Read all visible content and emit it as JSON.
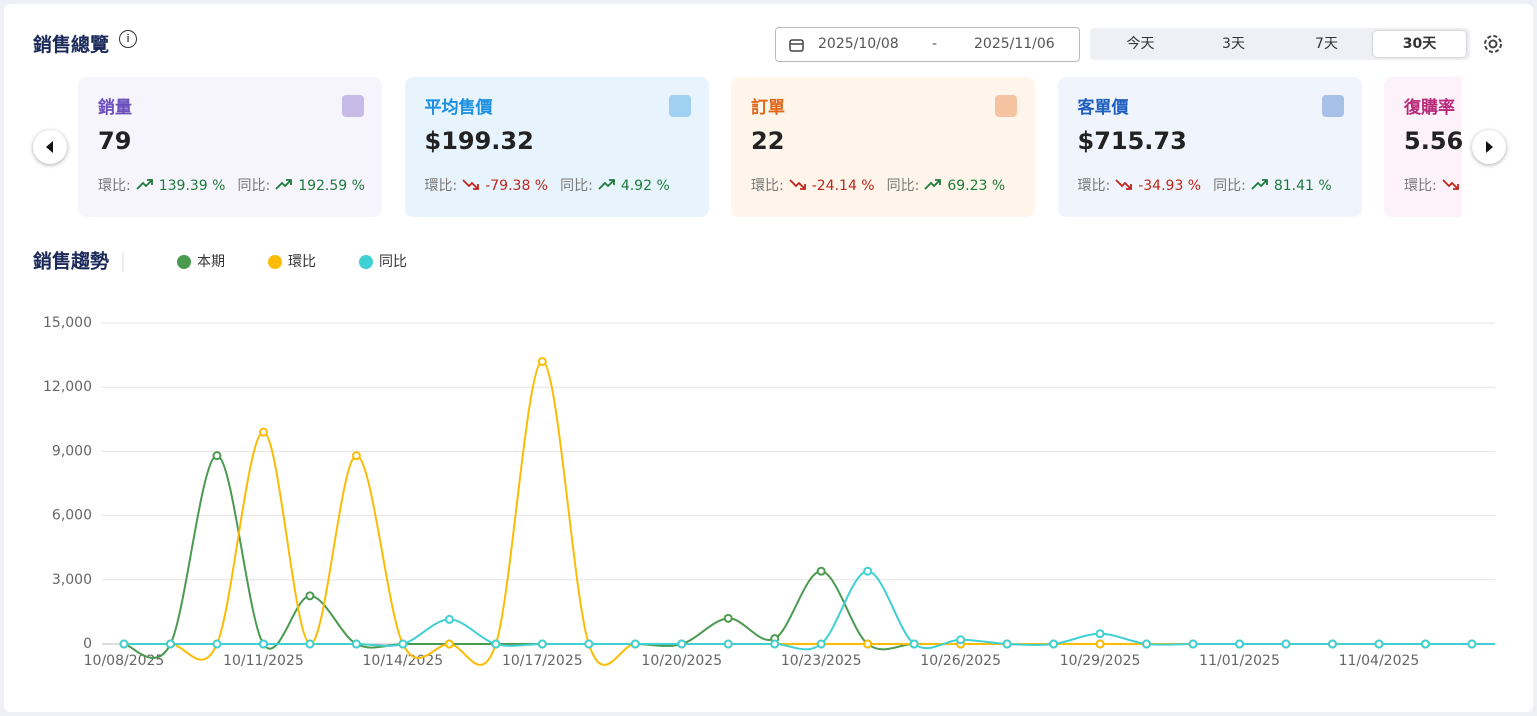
{
  "header": {
    "title": "銷售總覽",
    "date_start": "2025/10/08",
    "date_separator": "-",
    "date_end": "2025/11/06",
    "tabs": [
      "今天",
      "3天",
      "7天",
      "30天"
    ],
    "active_tab": 3
  },
  "cards": [
    {
      "title": "銷量",
      "value": "79",
      "mom_label": "環比:",
      "mom": "139.39 %",
      "mom_trend": "up",
      "yoy_label": "同比:",
      "yoy": "192.59 %",
      "yoy_trend": "up",
      "bg": "#f6f4fd",
      "color": "#6b4fbb"
    },
    {
      "title": "平均售價",
      "value": "$199.32",
      "mom_label": "環比:",
      "mom": "-79.38 %",
      "mom_trend": "down",
      "yoy_label": "同比:",
      "yoy": "4.92 %",
      "yoy_trend": "up",
      "bg": "#e8f4fd",
      "color": "#1a8fe0"
    },
    {
      "title": "訂單",
      "value": "22",
      "mom_label": "環比:",
      "mom": "-24.14 %",
      "mom_trend": "down",
      "yoy_label": "同比:",
      "yoy": "69.23 %",
      "yoy_trend": "up",
      "bg": "#fff5eb",
      "color": "#e0661a"
    },
    {
      "title": "客單價",
      "value": "$715.73",
      "mom_label": "環比:",
      "mom": "-34.93 %",
      "mom_trend": "down",
      "yoy_label": "同比:",
      "yoy": "81.41 %",
      "yoy_trend": "up",
      "bg": "#f0f5fd",
      "color": "#1f5fbf"
    },
    {
      "title": "復購率",
      "value": "5.56",
      "mom_label": "環比:",
      "mom_trend": "down",
      "bg": "#fdf2f9",
      "color": "#b8297a"
    }
  ],
  "chart_data": {
    "type": "line",
    "title": "銷售趨勢",
    "categories": [
      "10/08/2025",
      null,
      null,
      "10/11/2025",
      null,
      null,
      "10/14/2025",
      null,
      null,
      "10/17/2025",
      null,
      null,
      "10/20/2025",
      null,
      null,
      "10/23/2025",
      null,
      null,
      "10/26/2025",
      null,
      null,
      "10/29/2025",
      null,
      null,
      "11/01/2025",
      null,
      null,
      "11/04/2025",
      null,
      null
    ],
    "series": [
      {
        "name": "本期",
        "color": "#4a9a4f",
        "values": [
          0,
          0,
          8800,
          0,
          2250,
          0,
          0,
          0,
          0,
          0,
          0,
          0,
          0,
          1200,
          250,
          3400,
          0,
          0,
          0,
          0,
          0,
          0,
          0,
          0,
          0,
          0,
          0,
          0,
          0,
          0
        ]
      },
      {
        "name": "環比",
        "color": "#fbbc05",
        "values": [
          0,
          0,
          0,
          9900,
          0,
          8800,
          0,
          0,
          0,
          13200,
          0,
          0,
          0,
          0,
          0,
          0,
          0,
          0,
          0,
          0,
          0,
          0,
          0,
          0,
          0,
          0,
          0,
          0,
          0,
          0
        ]
      },
      {
        "name": "同比",
        "color": "#3fd0d4",
        "values": [
          0,
          0,
          0,
          0,
          0,
          0,
          0,
          1150,
          0,
          0,
          0,
          0,
          0,
          0,
          0,
          0,
          3400,
          0,
          200,
          0,
          0,
          480,
          0,
          0,
          0,
          0,
          0,
          0,
          0,
          0
        ]
      }
    ],
    "ylim": [
      0,
      15000
    ],
    "yticks": [
      0,
      {
        "value": 3000,
        "label": "3,000"
      },
      {
        "value": 6000,
        "label": "6,000"
      },
      {
        "value": 9000,
        "label": "9,000"
      },
      {
        "value": 12000,
        "label": "12,000"
      },
      {
        "value": 15000,
        "label": "15,000"
      }
    ],
    "grid": true
  }
}
